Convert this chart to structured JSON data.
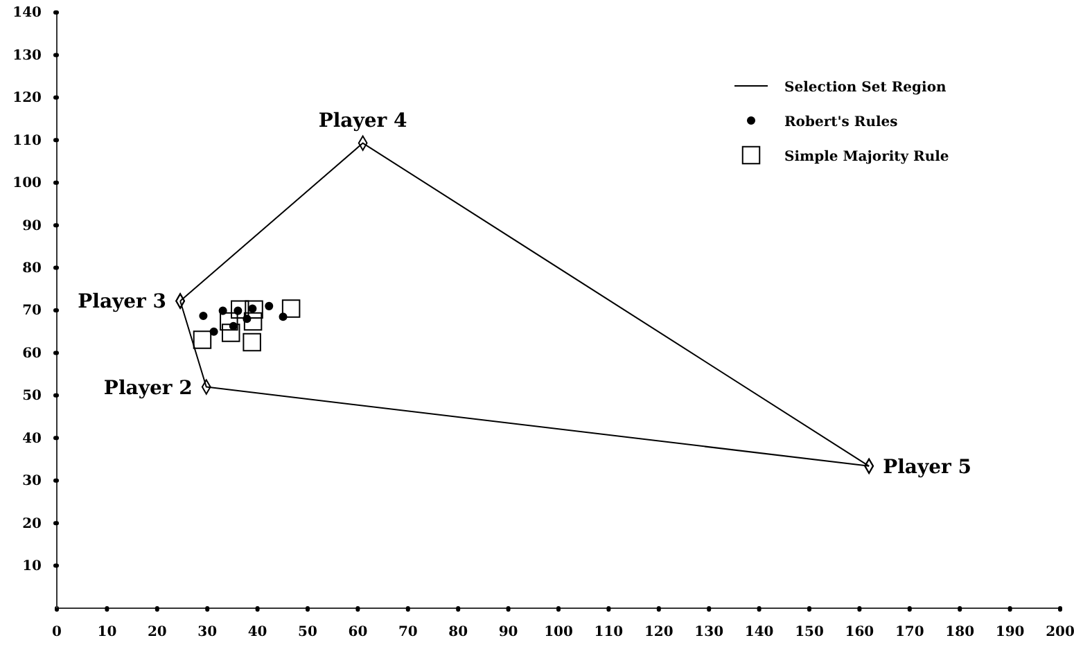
{
  "chart_data": {
    "type": "scatter",
    "xlim": [
      0,
      200
    ],
    "xticks": [
      0,
      10,
      20,
      30,
      40,
      50,
      60,
      70,
      80,
      90,
      100,
      110,
      120,
      130,
      140,
      150,
      160,
      170,
      180,
      190,
      200
    ],
    "ylim": [
      0,
      140
    ],
    "yticks": [
      10,
      20,
      30,
      40,
      50,
      60,
      70,
      80,
      90,
      100,
      110,
      120,
      130,
      140
    ],
    "grid": false,
    "legend": "top right",
    "series": [
      {
        "name": "Selection Set Region",
        "type": "line",
        "color": "#000000",
        "marker": "diamond",
        "line_style": "solid",
        "x": [
          24.6,
          61,
          161.9
        ],
        "values": [
          72.2,
          109.3,
          33.4
        ]
      },
      {
        "type": "line",
        "color": "#000000",
        "marker": "diamond",
        "line_style": "solid",
        "x": [
          24.6,
          29.8,
          161.9
        ],
        "values": [
          72.2,
          52,
          33.4
        ]
      },
      {
        "name": "Robert's Rules",
        "type": "scatter",
        "color": "#000000",
        "marker": "circle",
        "x": [
          29.2,
          33.1,
          36.1,
          39.0,
          42.3,
          45.1,
          31.3,
          35.2,
          37.9
        ],
        "values": [
          68.7,
          69.9,
          69.9,
          70.4,
          71.0,
          68.5,
          65.0,
          66.3,
          68.0
        ]
      },
      {
        "name": "Simple Majority Rule",
        "type": "scatter",
        "color": "#000000",
        "marker": "square",
        "x": [
          29.0,
          36.5,
          39.3,
          34.3,
          34.7,
          39.1,
          38.9,
          46.7
        ],
        "values": [
          63.1,
          70.2,
          70.2,
          67.4,
          64.7,
          67.4,
          62.5,
          70.4
        ]
      }
    ],
    "annotations": [
      {
        "text": "Player 3",
        "x": 24.6,
        "y": 72.2
      },
      {
        "text": "Player 4",
        "x": 61,
        "y": 109.3
      },
      {
        "text": "Player 2",
        "x": 29.8,
        "y": 52
      },
      {
        "text": "Player 5",
        "x": 161.9,
        "y": 33.4
      }
    ]
  }
}
